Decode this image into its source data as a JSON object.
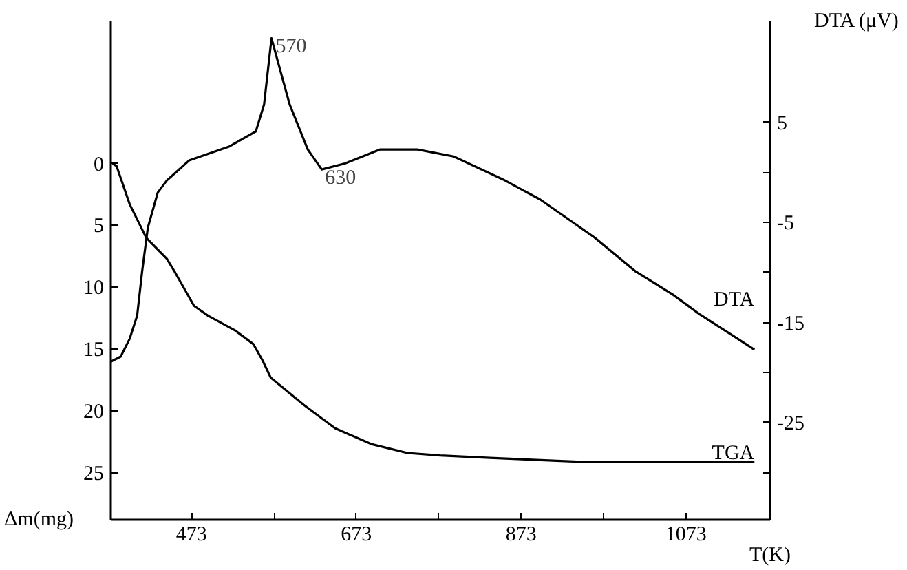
{
  "chart_data": {
    "type": "line",
    "xlabel": "T(K)",
    "ylabel": "Δm(mg)",
    "y2label": "DTA (μV)",
    "xlim": [
      375,
      1175
    ],
    "xticks": [
      473,
      {
        "value": 573,
        "label": null
      },
      673,
      {
        "value": 773,
        "label": null
      },
      873,
      {
        "value": 973,
        "label": null
      },
      1073
    ],
    "ylim": [
      28.8,
      -11.5
    ],
    "yticks": [
      0,
      5,
      10,
      15,
      20,
      25
    ],
    "y2lim": [
      -34.7,
      15.1
    ],
    "y2ticks": [
      5,
      {
        "value": 0,
        "label": null
      },
      -5,
      {
        "value": -10,
        "label": null
      },
      -15,
      {
        "value": -20,
        "label": null
      },
      -25,
      {
        "value": -30,
        "label": null
      }
    ],
    "grid": false,
    "series": [
      {
        "name": "DTA",
        "color": "#000000",
        "axis": "y2",
        "x": [
          375,
          387,
          398,
          407,
          413,
          420,
          432,
          443,
          470,
          519,
          551,
          561,
          570,
          592,
          614,
          631,
          659,
          702,
          747,
          791,
          851,
          896,
          962,
          1012,
          1057,
          1090,
          1128,
          1156
        ],
        "values": [
          -18.9,
          -18.4,
          -16.6,
          -14.3,
          -9.9,
          -5.5,
          -2.0,
          -0.8,
          1.2,
          2.6,
          4.1,
          6.8,
          13.4,
          6.8,
          2.3,
          0.3,
          0.9,
          2.3,
          2.3,
          1.6,
          -0.7,
          -2.7,
          -6.5,
          -9.9,
          -12.2,
          -14.2,
          -16.2,
          -17.7
        ]
      },
      {
        "name": "TGA",
        "color": "#000000",
        "x": [
          377,
          382,
          398,
          418,
          443,
          453,
          476,
          493,
          526,
          548,
          559,
          569,
          609,
          647,
          692,
          735,
          775,
          835,
          941,
          1156
        ],
        "values": [
          0,
          0.2,
          3.3,
          6.0,
          7.7,
          8.8,
          11.5,
          12.3,
          13.5,
          14.6,
          15.9,
          17.3,
          19.5,
          21.4,
          22.7,
          23.4,
          23.6,
          23.8,
          24.1,
          24.1
        ]
      }
    ],
    "annotations": [
      {
        "text": "570",
        "x": 570,
        "y": -10.1
      },
      {
        "text": "630",
        "x": 630,
        "y": 0.5
      }
    ]
  }
}
